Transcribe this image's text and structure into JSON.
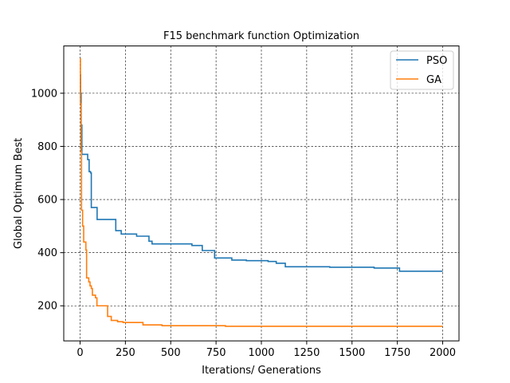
{
  "chart_data": {
    "type": "line",
    "title": "F15 benchmark function Optimization",
    "xlabel": "Iterations/ Generations",
    "ylabel": "Global Optimum Best",
    "xlim": [
      -90,
      2090
    ],
    "ylim": [
      68,
      1178
    ],
    "xticks": [
      0,
      250,
      500,
      750,
      1000,
      1250,
      1500,
      1750,
      2000
    ],
    "yticks": [
      200,
      400,
      600,
      800,
      1000
    ],
    "grid": true,
    "grid_style": "dashed",
    "legend_position": "top-right",
    "series": [
      {
        "name": "PSO",
        "color": "#1f77b4",
        "step": true,
        "points": [
          [
            0,
            1070
          ],
          [
            3,
            1000
          ],
          [
            6,
            880
          ],
          [
            10,
            770
          ],
          [
            40,
            770
          ],
          [
            42,
            750
          ],
          [
            50,
            705
          ],
          [
            58,
            700
          ],
          [
            62,
            570
          ],
          [
            92,
            570
          ],
          [
            94,
            525
          ],
          [
            195,
            525
          ],
          [
            197,
            483
          ],
          [
            225,
            483
          ],
          [
            227,
            470
          ],
          [
            310,
            470
          ],
          [
            312,
            462
          ],
          [
            378,
            462
          ],
          [
            380,
            443
          ],
          [
            395,
            443
          ],
          [
            397,
            433
          ],
          [
            615,
            433
          ],
          [
            617,
            427
          ],
          [
            672,
            427
          ],
          [
            674,
            408
          ],
          [
            740,
            408
          ],
          [
            742,
            380
          ],
          [
            835,
            380
          ],
          [
            837,
            372
          ],
          [
            915,
            372
          ],
          [
            917,
            370
          ],
          [
            1035,
            370
          ],
          [
            1037,
            367
          ],
          [
            1080,
            367
          ],
          [
            1082,
            360
          ],
          [
            1130,
            360
          ],
          [
            1132,
            347
          ],
          [
            1375,
            347
          ],
          [
            1377,
            345
          ],
          [
            1620,
            345
          ],
          [
            1622,
            342
          ],
          [
            1760,
            342
          ],
          [
            1762,
            330
          ],
          [
            2000,
            330
          ]
        ]
      },
      {
        "name": "GA",
        "color": "#ff7f0e",
        "step": true,
        "points": [
          [
            0,
            1130
          ],
          [
            2,
            960
          ],
          [
            5,
            780
          ],
          [
            8,
            560
          ],
          [
            14,
            500
          ],
          [
            20,
            440
          ],
          [
            32,
            410
          ],
          [
            36,
            305
          ],
          [
            48,
            290
          ],
          [
            55,
            275
          ],
          [
            62,
            265
          ],
          [
            68,
            240
          ],
          [
            85,
            230
          ],
          [
            93,
            200
          ],
          [
            150,
            200
          ],
          [
            152,
            160
          ],
          [
            170,
            160
          ],
          [
            172,
            145
          ],
          [
            205,
            145
          ],
          [
            207,
            140
          ],
          [
            235,
            140
          ],
          [
            237,
            137
          ],
          [
            345,
            137
          ],
          [
            347,
            128
          ],
          [
            450,
            128
          ],
          [
            452,
            125
          ],
          [
            800,
            125
          ],
          [
            802,
            123
          ],
          [
            2000,
            123
          ]
        ]
      }
    ]
  }
}
